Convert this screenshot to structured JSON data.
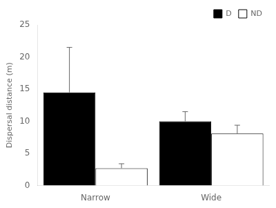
{
  "chart_data": {
    "type": "bar",
    "categories": [
      "Narrow",
      "Wide"
    ],
    "series": [
      {
        "name": "D",
        "color": "#000000",
        "values": [
          14.5,
          10.0
        ],
        "errors_up": [
          7.0,
          1.5
        ]
      },
      {
        "name": "ND",
        "color": "#ffffff",
        "values": [
          2.7,
          8.1
        ],
        "errors_up": [
          0.7,
          1.3
        ]
      }
    ],
    "ylabel": "Dispersal distance (m)",
    "ylim": [
      0,
      25
    ],
    "yticks": [
      0,
      5,
      10,
      15,
      20,
      25
    ],
    "grid": false,
    "legend": "upper right"
  }
}
